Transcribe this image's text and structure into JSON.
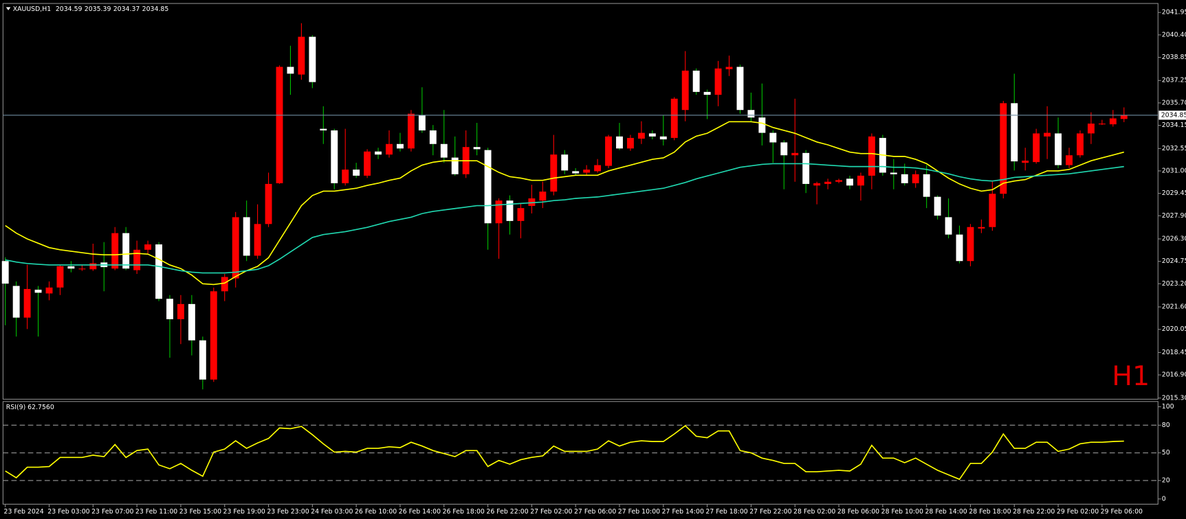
{
  "chart_data": [
    {
      "type": "candlestick",
      "title": "XAUUSD,H1",
      "timeframe_label": "H1",
      "up_color": "#ff0000",
      "down_color": "#ffffff",
      "down_wick_color": "#00c000",
      "price_line_color": "#6f8ca0",
      "ylim": [
        2015.22,
        2042.52
      ],
      "yticks": [
        2041.95,
        {
          "value": 2040.4,
          "label": "2040.40"
        },
        2038.85,
        2037.25,
        {
          "value": 2035.7,
          "label": "2035.70"
        },
        2034.15,
        2032.55,
        {
          "value": 2031,
          "label": "2031.00"
        },
        2029.45,
        {
          "value": 2027.9,
          "label": "2027.90"
        },
        {
          "value": 2026.3,
          "label": "2026.30"
        },
        2024.75,
        {
          "value": 2023.2,
          "label": "2023.20"
        },
        {
          "value": 2021.6,
          "label": "2021.60"
        },
        2020.05,
        2018.45,
        {
          "value": 2016.9,
          "label": "2016.90"
        },
        {
          "value": 2015.3,
          "label": "2015.30"
        }
      ],
      "categories": [
        "23 Feb 2024",
        null,
        null,
        null,
        "23 Feb 03:00",
        null,
        null,
        null,
        "23 Feb 07:00",
        null,
        null,
        null,
        "23 Feb 11:00",
        null,
        null,
        null,
        "23 Feb 15:00",
        null,
        null,
        null,
        "23 Feb 19:00",
        null,
        null,
        null,
        "23 Feb 23:00",
        null,
        null,
        null,
        "24 Feb 03:00",
        null,
        null,
        null,
        "26 Feb 10:00",
        null,
        null,
        null,
        "26 Feb 14:00",
        null,
        null,
        null,
        "26 Feb 18:00",
        null,
        null,
        null,
        "26 Feb 22:00",
        null,
        null,
        null,
        "27 Feb 02:00",
        null,
        null,
        null,
        "27 Feb 06:00",
        null,
        null,
        null,
        "27 Feb 10:00",
        null,
        null,
        null,
        "27 Feb 14:00",
        null,
        null,
        null,
        "27 Feb 18:00",
        null,
        null,
        null,
        "27 Feb 22:00",
        null,
        null,
        null,
        "28 Feb 02:00",
        null,
        null,
        null,
        "28 Feb 06:00",
        null,
        null,
        null,
        "28 Feb 10:00",
        null,
        null,
        null,
        "28 Feb 14:00",
        null,
        null,
        null,
        "28 Feb 18:00",
        null,
        null,
        null,
        "28 Feb 22:00",
        null,
        null,
        null,
        "29 Feb 02:00",
        null,
        null,
        null,
        "29 Feb 06:00",
        null,
        null
      ],
      "ohlc": [
        [
          2024.77,
          2025.03,
          2020.33,
          2023.21
        ],
        [
          2023.05,
          2023.36,
          2019.55,
          2020.86
        ],
        [
          2020.86,
          2024.51,
          2020.07,
          2022.84
        ],
        [
          2022.79,
          2023.05,
          2019.55,
          2022.58
        ],
        [
          2022.53,
          2023.36,
          2022.06,
          2022.94
        ],
        [
          2022.94,
          2024.51,
          2022.42,
          2024.41
        ],
        [
          2024.41,
          2024.77,
          2023.99,
          2024.25
        ],
        [
          2024.2,
          2024.51,
          2024.09,
          2024.25
        ],
        [
          2024.2,
          2025.97,
          2024.09,
          2024.61
        ],
        [
          2024.67,
          2026.08,
          2022.68,
          2024.35
        ],
        [
          2024.25,
          2027.12,
          2024.14,
          2026.7
        ],
        [
          2026.7,
          2027.12,
          2024.14,
          2024.25
        ],
        [
          2024.14,
          2026.18,
          2023.88,
          2025.55
        ],
        [
          2025.55,
          2026.18,
          2025.29,
          2025.92
        ],
        [
          2025.92,
          2026.08,
          2022,
          2022.16
        ],
        [
          2022.16,
          2022.42,
          2018.09,
          2020.75
        ],
        [
          2020.75,
          2022.42,
          2019.03,
          2021.8
        ],
        [
          2021.8,
          2022.42,
          2018.25,
          2019.29
        ],
        [
          2019.29,
          2019.55,
          2015.9,
          2016.58
        ],
        [
          2016.58,
          2022.94,
          2016.42,
          2022.68
        ],
        [
          2022.68,
          2023.88,
          2022,
          2023.67
        ],
        [
          2023.57,
          2028.16,
          2022.94,
          2027.8
        ],
        [
          2027.8,
          2028.95,
          2024.77,
          2025.14
        ],
        [
          2025.14,
          2028.69,
          2024.93,
          2027.33
        ],
        [
          2027.33,
          2030.88,
          2027.12,
          2030.1
        ],
        [
          2030.15,
          2038.29,
          2030.1,
          2038.19
        ],
        [
          2038.19,
          2039.65,
          2036.26,
          2037.72
        ],
        [
          2037.66,
          2041.21,
          2037.3,
          2040.27
        ],
        [
          2040.27,
          2040.38,
          2036.72,
          2037.14
        ],
        [
          2033.91,
          2035.47,
          2032.86,
          2033.8
        ],
        [
          2033.8,
          2033.91,
          2029.73,
          2030.15
        ],
        [
          2030.15,
          2033.91,
          2029.99,
          2031.09
        ],
        [
          2031.09,
          2031.56,
          2030.51,
          2030.67
        ],
        [
          2030.67,
          2032.5,
          2030.51,
          2032.34
        ],
        [
          2032.34,
          2032.6,
          2031.82,
          2032.13
        ],
        [
          2032.13,
          2033.8,
          2031.92,
          2032.86
        ],
        [
          2032.86,
          2033.63,
          2032.34,
          2032.55
        ],
        [
          2032.55,
          2035.21,
          2032.34,
          2034.95
        ],
        [
          2034.85,
          2036.78,
          2033.63,
          2033.8
        ],
        [
          2033.8,
          2034.17,
          2032.08,
          2032.86
        ],
        [
          2032.86,
          2035.21,
          2031.56,
          2031.92
        ],
        [
          2031.92,
          2033.38,
          2030.67,
          2030.77
        ],
        [
          2030.77,
          2033.8,
          2030.51,
          2032.65
        ],
        [
          2032.65,
          2034.32,
          2032.08,
          2032.5
        ],
        [
          2032.44,
          2032.6,
          2025.55,
          2027.38
        ],
        [
          2027.38,
          2029.1,
          2024.93,
          2028.95
        ],
        [
          2028.95,
          2029.31,
          2026.6,
          2027.54
        ],
        [
          2027.54,
          2028.79,
          2026.34,
          2028.43
        ],
        [
          2028.58,
          2030.04,
          2028.06,
          2029.1
        ],
        [
          2028.95,
          2030.25,
          2028.43,
          2029.57
        ],
        [
          2029.57,
          2033.49,
          2029.31,
          2032.13
        ],
        [
          2032.13,
          2032.44,
          2030.77,
          2031.03
        ],
        [
          2030.98,
          2031.19,
          2030.72,
          2030.83
        ],
        [
          2030.88,
          2031.4,
          2030.67,
          2031.09
        ],
        [
          2030.98,
          2031.82,
          2030.88,
          2031.4
        ],
        [
          2031.35,
          2033.49,
          2031.19,
          2033.38
        ],
        [
          2033.38,
          2034.32,
          2032.44,
          2032.55
        ],
        [
          2032.55,
          2033.49,
          2032.39,
          2033.28
        ],
        [
          2033.23,
          2034.43,
          2032.86,
          2033.63
        ],
        [
          2033.59,
          2033.8,
          2033.18,
          2033.38
        ],
        [
          2033.38,
          2034.85,
          2032.76,
          2033.18
        ],
        [
          2033.28,
          2036.1,
          2033.12,
          2035.99
        ],
        [
          2035.21,
          2039.28,
          2034.43,
          2037.93
        ],
        [
          2037.93,
          2038.08,
          2036.26,
          2036.46
        ],
        [
          2036.46,
          2036.62,
          2034.58,
          2036.26
        ],
        [
          2036.26,
          2038.6,
          2035.47,
          2038.08
        ],
        [
          2038.03,
          2038.97,
          2037.56,
          2038.19
        ],
        [
          2038.19,
          2038.34,
          2034.95,
          2035.21
        ],
        [
          2035.21,
          2036.41,
          2034.43,
          2034.69
        ],
        [
          2034.69,
          2037.04,
          2032.76,
          2033.63
        ],
        [
          2033.63,
          2033.8,
          2031.56,
          2032.97
        ],
        [
          2032.97,
          2033.12,
          2029.73,
          2032.08
        ],
        [
          2032.08,
          2035.99,
          2030.25,
          2032.24
        ],
        [
          2032.24,
          2032.44,
          2029.47,
          2030.1
        ],
        [
          2029.99,
          2030.25,
          2028.69,
          2030.15
        ],
        [
          2030.1,
          2030.46,
          2029.73,
          2030.25
        ],
        [
          2030.25,
          2030.46,
          2030.15,
          2030.36
        ],
        [
          2030.46,
          2030.67,
          2029.73,
          2029.99
        ],
        [
          2029.99,
          2030.88,
          2028.95,
          2030.67
        ],
        [
          2030.67,
          2033.59,
          2029.73,
          2033.38
        ],
        [
          2033.28,
          2033.49,
          2030.67,
          2030.88
        ],
        [
          2030.88,
          2031.82,
          2029.73,
          2030.77
        ],
        [
          2030.77,
          2031.5,
          2029.99,
          2030.15
        ],
        [
          2030.15,
          2031.03,
          2029.83,
          2030.77
        ],
        [
          2030.77,
          2031.4,
          2028.43,
          2029.21
        ],
        [
          2029.21,
          2029.31,
          2027.64,
          2027.91
        ],
        [
          2027.8,
          2029.1,
          2026.34,
          2026.6
        ],
        [
          2026.6,
          2027.22,
          2024.61,
          2024.77
        ],
        [
          2024.77,
          2027.33,
          2024.41,
          2027.12
        ],
        [
          2027.02,
          2027.64,
          2026.7,
          2027.12
        ],
        [
          2027.12,
          2030.25,
          2026.86,
          2029.42
        ],
        [
          2029.42,
          2035.84,
          2029.1,
          2035.68
        ],
        [
          2035.68,
          2037.72,
          2031.03,
          2031.66
        ],
        [
          2031.56,
          2032.6,
          2031.03,
          2031.71
        ],
        [
          2031.61,
          2033.91,
          2031.5,
          2033.59
        ],
        [
          2033.38,
          2035.47,
          2031.82,
          2033.63
        ],
        [
          2033.59,
          2034.69,
          2031.19,
          2031.4
        ],
        [
          2031.4,
          2032.6,
          2031.19,
          2032.08
        ],
        [
          2032.08,
          2033.8,
          2031.92,
          2033.59
        ],
        [
          2033.59,
          2035.05,
          2032.86,
          2034.27
        ],
        [
          2034.22,
          2034.53,
          2034.17,
          2034.27
        ],
        [
          2034.22,
          2035.21,
          2034.06,
          2034.63
        ],
        [
          2034.59,
          2035.39,
          2034.37,
          2034.85
        ]
      ],
      "series": [
        {
          "color": "#ffff00",
          "values": [
            2027.22,
            2026.7,
            2026.3,
            2026,
            2025.7,
            2025.55,
            2025.45,
            2025.35,
            2025.25,
            2025.2,
            2025.2,
            2025.25,
            2025.3,
            2025.25,
            2024.9,
            2024.5,
            2024.25,
            2023.8,
            2023.2,
            2023.15,
            2023.25,
            2023.7,
            2024.1,
            2024.4,
            2025,
            2026.2,
            2027.4,
            2028.6,
            2029.3,
            2029.6,
            2029.6,
            2029.7,
            2029.8,
            2030,
            2030.15,
            2030.35,
            2030.5,
            2031,
            2031.4,
            2031.6,
            2031.7,
            2031.7,
            2031.7,
            2031.7,
            2031.3,
            2030.9,
            2030.6,
            2030.5,
            2030.35,
            2030.35,
            2030.5,
            2030.6,
            2030.7,
            2030.7,
            2030.7,
            2031,
            2031.2,
            2031.4,
            2031.6,
            2031.8,
            2031.9,
            2032.3,
            2033,
            2033.4,
            2033.6,
            2034,
            2034.4,
            2034.4,
            2034.4,
            2034.3,
            2034,
            2033.8,
            2033.6,
            2033.3,
            2033,
            2032.8,
            2032.55,
            2032.3,
            2032.2,
            2032.2,
            2032.1,
            2032,
            2032,
            2031.8,
            2031.5,
            2031,
            2030.5,
            2030.1,
            2029.8,
            2029.6,
            2029.7,
            2030.15,
            2030.3,
            2030.4,
            2030.7,
            2031,
            2031,
            2031.1,
            2031.4,
            2031.7,
            2031.9,
            2032.1,
            2032.3
          ]
        },
        {
          "color": "#20d8b0",
          "values": [
            2024.85,
            2024.7,
            2024.6,
            2024.55,
            2024.5,
            2024.5,
            2024.5,
            2024.5,
            2024.5,
            2024.5,
            2024.5,
            2024.5,
            2024.5,
            2024.5,
            2024.4,
            2024.25,
            2024.1,
            2024,
            2023.95,
            2023.95,
            2023.95,
            2024,
            2024.1,
            2024.2,
            2024.45,
            2024.9,
            2025.4,
            2025.9,
            2026.4,
            2026.6,
            2026.7,
            2026.8,
            2026.95,
            2027.1,
            2027.3,
            2027.5,
            2027.65,
            2027.8,
            2028.05,
            2028.2,
            2028.3,
            2028.4,
            2028.5,
            2028.6,
            2028.6,
            2028.65,
            2028.7,
            2028.75,
            2028.8,
            2028.85,
            2028.95,
            2029,
            2029.1,
            2029.15,
            2029.2,
            2029.3,
            2029.4,
            2029.5,
            2029.6,
            2029.7,
            2029.8,
            2030,
            2030.2,
            2030.45,
            2030.65,
            2030.85,
            2031.05,
            2031.25,
            2031.35,
            2031.45,
            2031.5,
            2031.5,
            2031.5,
            2031.5,
            2031.45,
            2031.4,
            2031.35,
            2031.3,
            2031.3,
            2031.3,
            2031.3,
            2031.25,
            2031.25,
            2031.2,
            2031.1,
            2030.95,
            2030.8,
            2030.6,
            2030.45,
            2030.35,
            2030.3,
            2030.4,
            2030.55,
            2030.6,
            2030.65,
            2030.7,
            2030.75,
            2030.8,
            2030.9,
            2031,
            2031.1,
            2031.2,
            2031.3
          ]
        }
      ]
    },
    {
      "type": "line",
      "title": "RSI(9) 62.7560",
      "color": "#ffff00",
      "ylim": [
        -5.7,
        104.9
      ],
      "yticks": [
        0,
        20,
        50,
        80,
        100
      ],
      "levels": [
        20,
        50,
        80
      ],
      "values": [
        30.3,
        23,
        34.4,
        34.4,
        35.2,
        45,
        45,
        45,
        47.5,
        45.9,
        59,
        45,
        52.5,
        54.1,
        36.9,
        32.8,
        38.5,
        31.1,
        24.6,
        50.8,
        54.1,
        63.1,
        54.9,
        60.7,
        65.6,
        77,
        76.2,
        78.7,
        69.7,
        59.8,
        50.8,
        51.6,
        50.8,
        54.9,
        54.9,
        56.6,
        55.7,
        61.5,
        57.4,
        52.5,
        49.2,
        45.9,
        52.5,
        52.5,
        35.2,
        41.8,
        37.7,
        42.6,
        45.1,
        46.7,
        57.4,
        51.6,
        51.6,
        51.6,
        54.1,
        63.1,
        57.4,
        61.5,
        63.1,
        62.3,
        62.3,
        70.5,
        79.5,
        68,
        66.4,
        73.8,
        73.8,
        52.5,
        50,
        44.3,
        41.8,
        38.5,
        38.5,
        29.5,
        29.5,
        30.3,
        31.1,
        30.3,
        37.7,
        58.2,
        44.3,
        44.3,
        39.3,
        44.3,
        37.7,
        31.1,
        26.2,
        21.3,
        38.5,
        38.5,
        50.8,
        70.5,
        54.9,
        54.9,
        61.5,
        61.5,
        51.6,
        54.1,
        59.8,
        61.5,
        61.5,
        62.3,
        62.756
      ]
    }
  ]
}
